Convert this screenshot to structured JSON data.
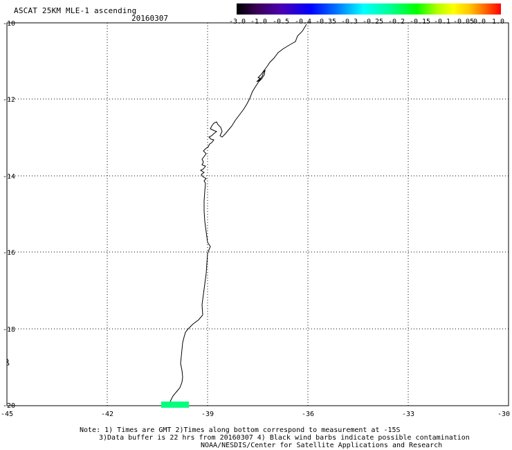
{
  "title": "ASCAT 25KM MLE-1 ascending",
  "date": "20160307",
  "colorbar": {
    "labels": [
      "-3.0",
      "-1.0",
      "-0.5",
      "-0.4",
      "-0.35",
      "-0.3",
      "-0.25",
      "-0.2",
      "-0.15",
      "-0.1",
      "-0.05",
      "0.0",
      "1.0"
    ]
  },
  "axes": {
    "lat_labels": [
      "-10",
      "-12",
      "-14",
      "-16",
      "-18",
      "-20"
    ],
    "lon_labels": [
      "-45",
      "-42",
      "-39",
      "-36",
      "-33",
      "-30"
    ]
  },
  "notes": {
    "line1": "Note: 1) Times are GMT 2)Times along bottom correspond to measurement at -15S",
    "line2": "3)Data buffer is 22 hrs from 20160307 4) Black wind barbs indicate possible contamination",
    "line3": "NOAA/NESDIS/Center for Satellite Applications and Research"
  },
  "colors": {
    "data_swatch": "#00ff7f"
  }
}
